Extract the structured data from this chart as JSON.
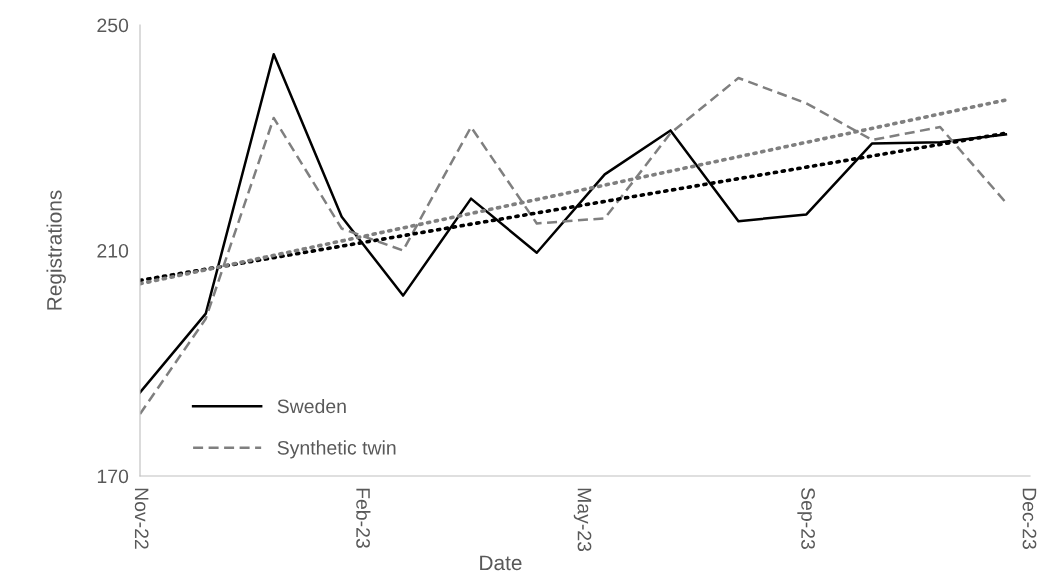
{
  "chart_data": {
    "type": "line",
    "xlabel": "Date",
    "ylabel": "Registrations",
    "x": [
      "2022-11-01",
      "2022-12-01",
      "2023-01-01",
      "2023-02-01",
      "2023-03-01",
      "2023-04-01",
      "2023-05-01",
      "2023-06-01",
      "2023-07-01",
      "2023-08-01",
      "2023-09-01",
      "2023-10-01",
      "2023-11-01",
      "2023-12-01"
    ],
    "series": [
      {
        "name": "Sweden",
        "color": "#000000",
        "line_style": "solid",
        "values": [
          184.8,
          198.8,
          244.8,
          216.0,
          202.0,
          219.2,
          209.6,
          223.5,
          231.3,
          215.2,
          216.4,
          229.0,
          229.2,
          230.6
        ]
      },
      {
        "name": "Synthetic twin",
        "color": "#7f7f7f",
        "line_style": "dashed",
        "values": [
          181.0,
          197.9,
          233.5,
          213.9,
          210.0,
          231.9,
          214.8,
          215.7,
          230.8,
          240.6,
          236.1,
          229.6,
          231.9,
          218.5
        ]
      },
      {
        "type": "line",
        "color": "#000000",
        "line_style": "dotted",
        "x": [
          "2022-11-01",
          "2023-12-01"
        ],
        "values": [
          204.7,
          230.8
        ]
      },
      {
        "type": "line",
        "color": "#7f7f7f",
        "line_style": "dotted",
        "x": [
          "2022-11-01",
          "2023-12-01"
        ],
        "values": [
          204.1,
          236.7
        ]
      }
    ],
    "xlim": [
      "2022-11-01",
      "2023-12-12"
    ],
    "xticks": [
      {
        "value": "2022-11-01",
        "label": "Nov-22"
      },
      {
        "value": "2023-02-10",
        "label": "Feb-23"
      },
      {
        "value": "2023-05-22",
        "label": "May-23"
      },
      {
        "value": "2023-09-01",
        "label": "Sep-23"
      },
      {
        "value": "2023-12-11",
        "label": "Dec-23"
      }
    ],
    "ylim": [
      170,
      250
    ],
    "yticks": [
      170,
      210,
      250
    ],
    "grid": false,
    "legend": "bottom left",
    "marker": "none"
  }
}
